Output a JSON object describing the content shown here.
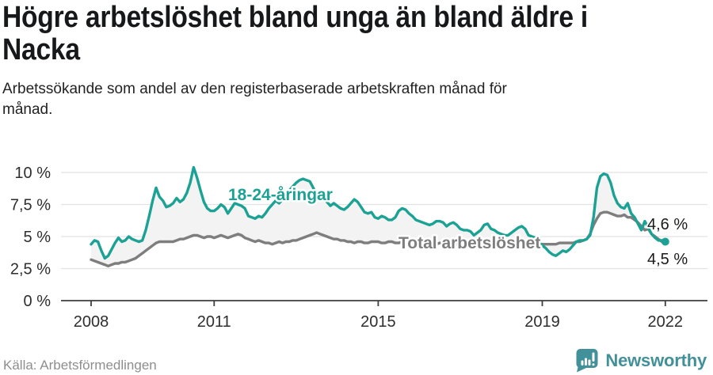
{
  "header": {
    "title_line1": "Högre arbetslöshet bland unga än bland äldre i",
    "title_line2": "Nacka",
    "subtitle": "Arbetssökande som andel av den registerbaserade arbetskraften månad för månad."
  },
  "chart_data": {
    "type": "line",
    "x_unit": "month",
    "x_start": "2008-01",
    "x_end": "2022-01",
    "ylim": [
      0,
      10.5
    ],
    "grid": true,
    "fill_between_color": "#f3f3f3",
    "axis_color": "#3d3d3d",
    "gridline_color": "#e2e2e2",
    "yticks": [
      {
        "label": "0 %",
        "value": 0
      },
      {
        "label": "2,5 %",
        "value": 2.5
      },
      {
        "label": "5 %",
        "value": 5
      },
      {
        "label": "7,5 %",
        "value": 7.5
      },
      {
        "label": "10 %",
        "value": 10
      }
    ],
    "xticks": [
      {
        "label": "2008",
        "year": 2008
      },
      {
        "label": "2011",
        "year": 2011
      },
      {
        "label": "2015",
        "year": 2015
      },
      {
        "label": "2019",
        "year": 2019
      },
      {
        "label": "2022",
        "year": 2022
      }
    ],
    "series": [
      {
        "name": "18-24-åringar",
        "color": "#1CA294",
        "end_label": "4,6 %",
        "end_value": 4.6,
        "values": [
          4.4,
          4.7,
          4.6,
          3.9,
          3.3,
          3.5,
          4.0,
          4.5,
          4.9,
          4.6,
          4.7,
          5.0,
          4.8,
          4.7,
          4.6,
          4.7,
          5.5,
          6.6,
          7.8,
          8.8,
          8.1,
          7.8,
          7.3,
          7.4,
          7.6,
          8.0,
          7.7,
          7.9,
          8.4,
          9.2,
          10.4,
          9.6,
          8.6,
          7.7,
          7.2,
          7.0,
          7.0,
          7.2,
          7.5,
          7.3,
          6.8,
          7.2,
          7.6,
          7.5,
          7.4,
          7.2,
          6.6,
          6.5,
          6.4,
          6.6,
          6.5,
          6.8,
          7.2,
          7.5,
          7.8,
          7.6,
          7.9,
          8.2,
          8.6,
          8.9,
          9.2,
          9.4,
          9.5,
          9.4,
          9.3,
          8.8,
          8.2,
          7.8,
          8.0,
          7.7,
          7.4,
          7.6,
          7.4,
          7.2,
          7.1,
          7.3,
          7.6,
          7.9,
          7.7,
          7.3,
          6.9,
          6.8,
          6.9,
          6.5,
          6.4,
          6.6,
          6.5,
          6.3,
          6.3,
          6.5,
          7.0,
          7.2,
          7.1,
          6.8,
          6.6,
          6.3,
          6.2,
          6.1,
          6.0,
          5.9,
          6.0,
          6.2,
          6.2,
          6.1,
          5.8,
          6.0,
          6.1,
          5.9,
          5.6,
          5.5,
          5.5,
          5.4,
          5.1,
          5.3,
          5.5,
          5.9,
          6.0,
          5.6,
          5.5,
          5.3,
          5.2,
          5.1,
          5.1,
          5.3,
          5.5,
          5.7,
          5.8,
          5.6,
          5.1,
          5.0,
          4.9,
          4.6,
          4.3,
          4.1,
          3.8,
          3.6,
          3.5,
          3.7,
          3.9,
          3.8,
          4.0,
          4.3,
          4.6,
          4.7,
          4.7,
          4.8,
          5.1,
          6.5,
          8.8,
          9.7,
          9.9,
          9.8,
          9.2,
          8.2,
          7.6,
          7.3,
          7.2,
          7.6,
          6.8,
          6.5,
          6.0,
          5.5,
          6.2,
          5.7,
          5.2,
          4.9,
          4.7,
          4.7,
          4.6
        ]
      },
      {
        "name": "Total arbetslöshet",
        "color": "#7E7E7E",
        "end_label": "4,5 %",
        "end_value": 4.5,
        "values": [
          3.2,
          3.1,
          3.0,
          2.9,
          2.8,
          2.7,
          2.8,
          2.9,
          2.9,
          3.0,
          3.0,
          3.1,
          3.2,
          3.3,
          3.5,
          3.7,
          3.9,
          4.1,
          4.3,
          4.5,
          4.6,
          4.6,
          4.6,
          4.6,
          4.6,
          4.7,
          4.8,
          4.8,
          4.9,
          5.0,
          5.1,
          5.1,
          5.0,
          4.9,
          5.0,
          5.0,
          4.9,
          5.0,
          5.1,
          5.0,
          4.9,
          5.0,
          5.1,
          5.2,
          5.1,
          4.9,
          4.8,
          4.7,
          4.6,
          4.7,
          4.6,
          4.5,
          4.5,
          4.4,
          4.5,
          4.6,
          4.5,
          4.6,
          4.6,
          4.7,
          4.7,
          4.8,
          4.9,
          5.0,
          5.1,
          5.2,
          5.3,
          5.2,
          5.1,
          5.0,
          4.9,
          4.8,
          4.8,
          4.7,
          4.7,
          4.6,
          4.6,
          4.5,
          4.6,
          4.6,
          4.5,
          4.5,
          4.6,
          4.6,
          4.6,
          4.5,
          4.5,
          4.6,
          4.6,
          4.5,
          4.5,
          4.6,
          4.6,
          4.5,
          4.5,
          4.5,
          4.5,
          4.5,
          4.4,
          4.5,
          4.5,
          4.4,
          4.5,
          4.5,
          4.4,
          4.5,
          4.5,
          4.4,
          4.4,
          4.5,
          4.4,
          4.4,
          4.5,
          4.4,
          4.4,
          4.5,
          4.5,
          4.4,
          4.4,
          4.4,
          4.4,
          4.4,
          4.3,
          4.4,
          4.4,
          4.3,
          4.4,
          4.4,
          4.3,
          4.4,
          4.4,
          4.4,
          4.4,
          4.4,
          4.4,
          4.4,
          4.4,
          4.5,
          4.5,
          4.5,
          4.5,
          4.5,
          4.6,
          4.6,
          4.7,
          4.8,
          5.2,
          5.9,
          6.4,
          6.8,
          6.9,
          6.9,
          6.8,
          6.7,
          6.6,
          6.6,
          6.7,
          6.5,
          6.5,
          6.3,
          6.1,
          5.8,
          5.5,
          5.6,
          5.2,
          5.0,
          4.8,
          4.6,
          4.5
        ]
      }
    ]
  },
  "footer": {
    "source": "Källa: Arbetsförmedlingen",
    "brand": "Newsworthy",
    "brand_color": "#42909A"
  }
}
